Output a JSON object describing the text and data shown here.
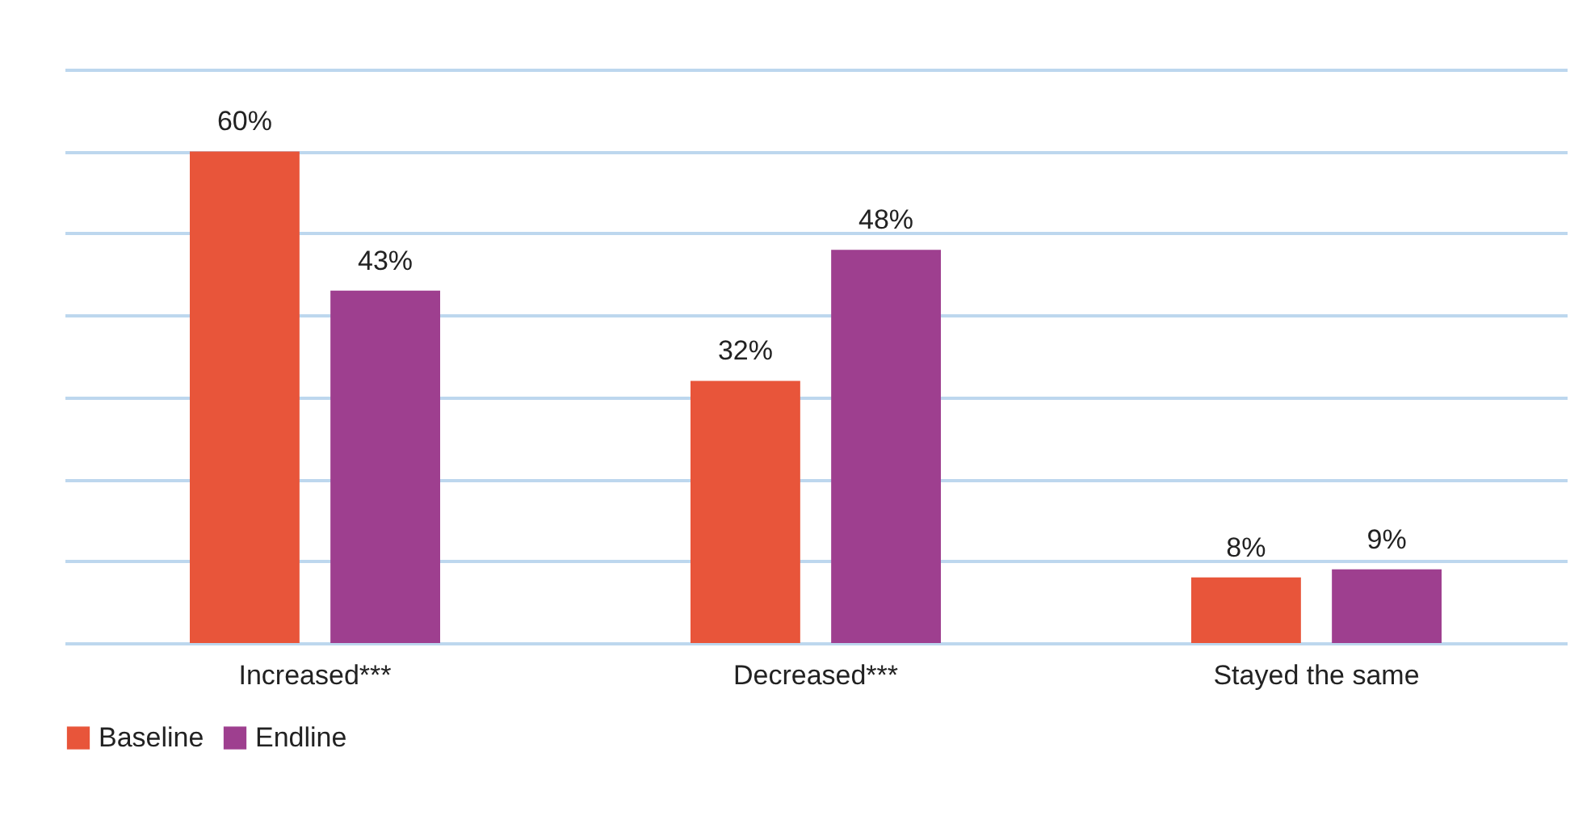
{
  "chart_data": {
    "type": "bar",
    "categories": [
      "Increased***",
      "Decreased***",
      "Stayed the same"
    ],
    "series": [
      {
        "name": "Baseline",
        "color": "#e8553a",
        "values": [
          60,
          32,
          8
        ],
        "value_labels": [
          "60%",
          "32%",
          "8%"
        ]
      },
      {
        "name": "Endline",
        "color": "#9e3f8f",
        "values": [
          43,
          48,
          9
        ],
        "value_labels": [
          "43%",
          "48%",
          "9%"
        ]
      }
    ],
    "ylim": [
      0,
      70
    ],
    "yticks": [
      {
        "value": 0,
        "label": null
      },
      {
        "value": 10,
        "label": null
      },
      {
        "value": 20,
        "label": null
      },
      {
        "value": 30,
        "label": null
      },
      {
        "value": 40,
        "label": null
      },
      {
        "value": 50,
        "label": null
      },
      {
        "value": 60,
        "label": null
      },
      {
        "value": 70,
        "label": null
      }
    ],
    "grid": "y",
    "legend": "bottom",
    "tick_labels": "x"
  }
}
